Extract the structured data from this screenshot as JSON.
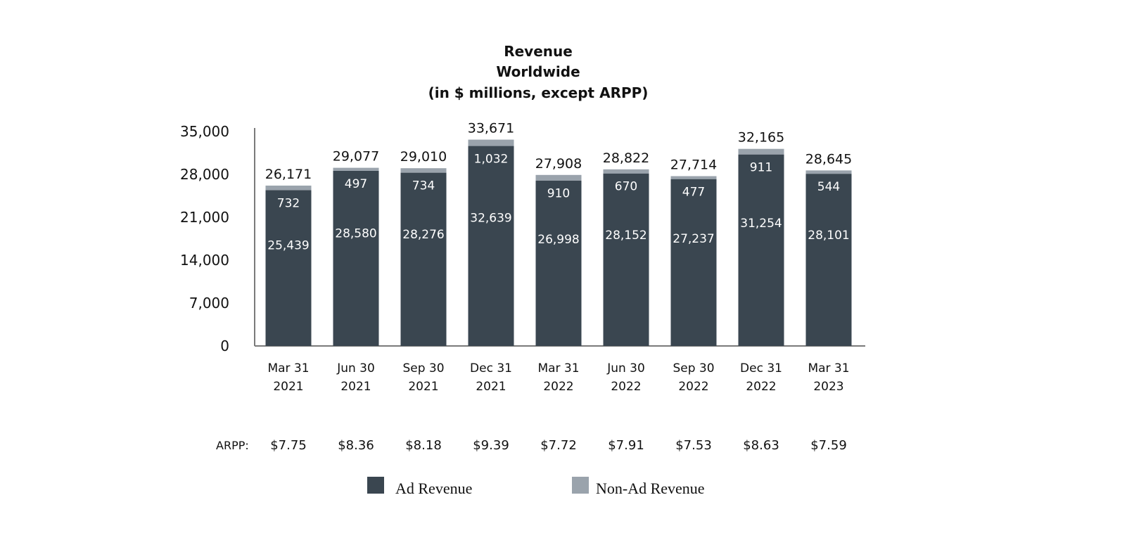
{
  "chart_data": {
    "type": "bar",
    "stacked": true,
    "title": [
      "Revenue",
      "Worldwide",
      "(in $ millions, except ARPP)"
    ],
    "categories": [
      [
        "Mar 31",
        "2021"
      ],
      [
        "Jun 30",
        "2021"
      ],
      [
        "Sep 30",
        "2021"
      ],
      [
        "Dec 31",
        "2021"
      ],
      [
        "Mar 31",
        "2022"
      ],
      [
        "Jun 30",
        "2022"
      ],
      [
        "Sep 30",
        "2022"
      ],
      [
        "Dec 31",
        "2022"
      ],
      [
        "Mar 31",
        "2023"
      ]
    ],
    "series": [
      {
        "name": "Ad Revenue",
        "color": "#3a4650",
        "values": [
          25439,
          28580,
          28276,
          32639,
          26998,
          28152,
          27237,
          31254,
          28101
        ],
        "labels": [
          "25,439",
          "28,580",
          "28,276",
          "32,639",
          "26,998",
          "28,152",
          "27,237",
          "31,254",
          "28,101"
        ]
      },
      {
        "name": "Non-Ad Revenue",
        "color": "#9aa3ac",
        "values": [
          732,
          497,
          734,
          1032,
          910,
          670,
          477,
          911,
          544
        ],
        "labels": [
          "732",
          "497",
          "734",
          "1,032",
          "910",
          "670",
          "477",
          "911",
          "544"
        ]
      }
    ],
    "totals": [
      "26,171",
      "29,077",
      "29,010",
      "33,671",
      "27,908",
      "28,822",
      "27,714",
      "32,165",
      "28,645"
    ],
    "ylim": [
      0,
      35000
    ],
    "yticks": [
      0,
      7000,
      14000,
      21000,
      28000,
      35000
    ],
    "ytick_labels": [
      "0",
      "7,000",
      "14,000",
      "21,000",
      "28,000",
      "35,000"
    ],
    "arpp_label": "ARPP:",
    "arpp": [
      "$7.75",
      "$8.36",
      "$8.18",
      "$9.39",
      "$7.72",
      "$7.91",
      "$7.53",
      "$8.63",
      "$7.59"
    ],
    "legend": [
      {
        "label": "Ad Revenue",
        "color": "#3a4650"
      },
      {
        "label": "Non-Ad Revenue",
        "color": "#9aa3ac"
      }
    ]
  }
}
